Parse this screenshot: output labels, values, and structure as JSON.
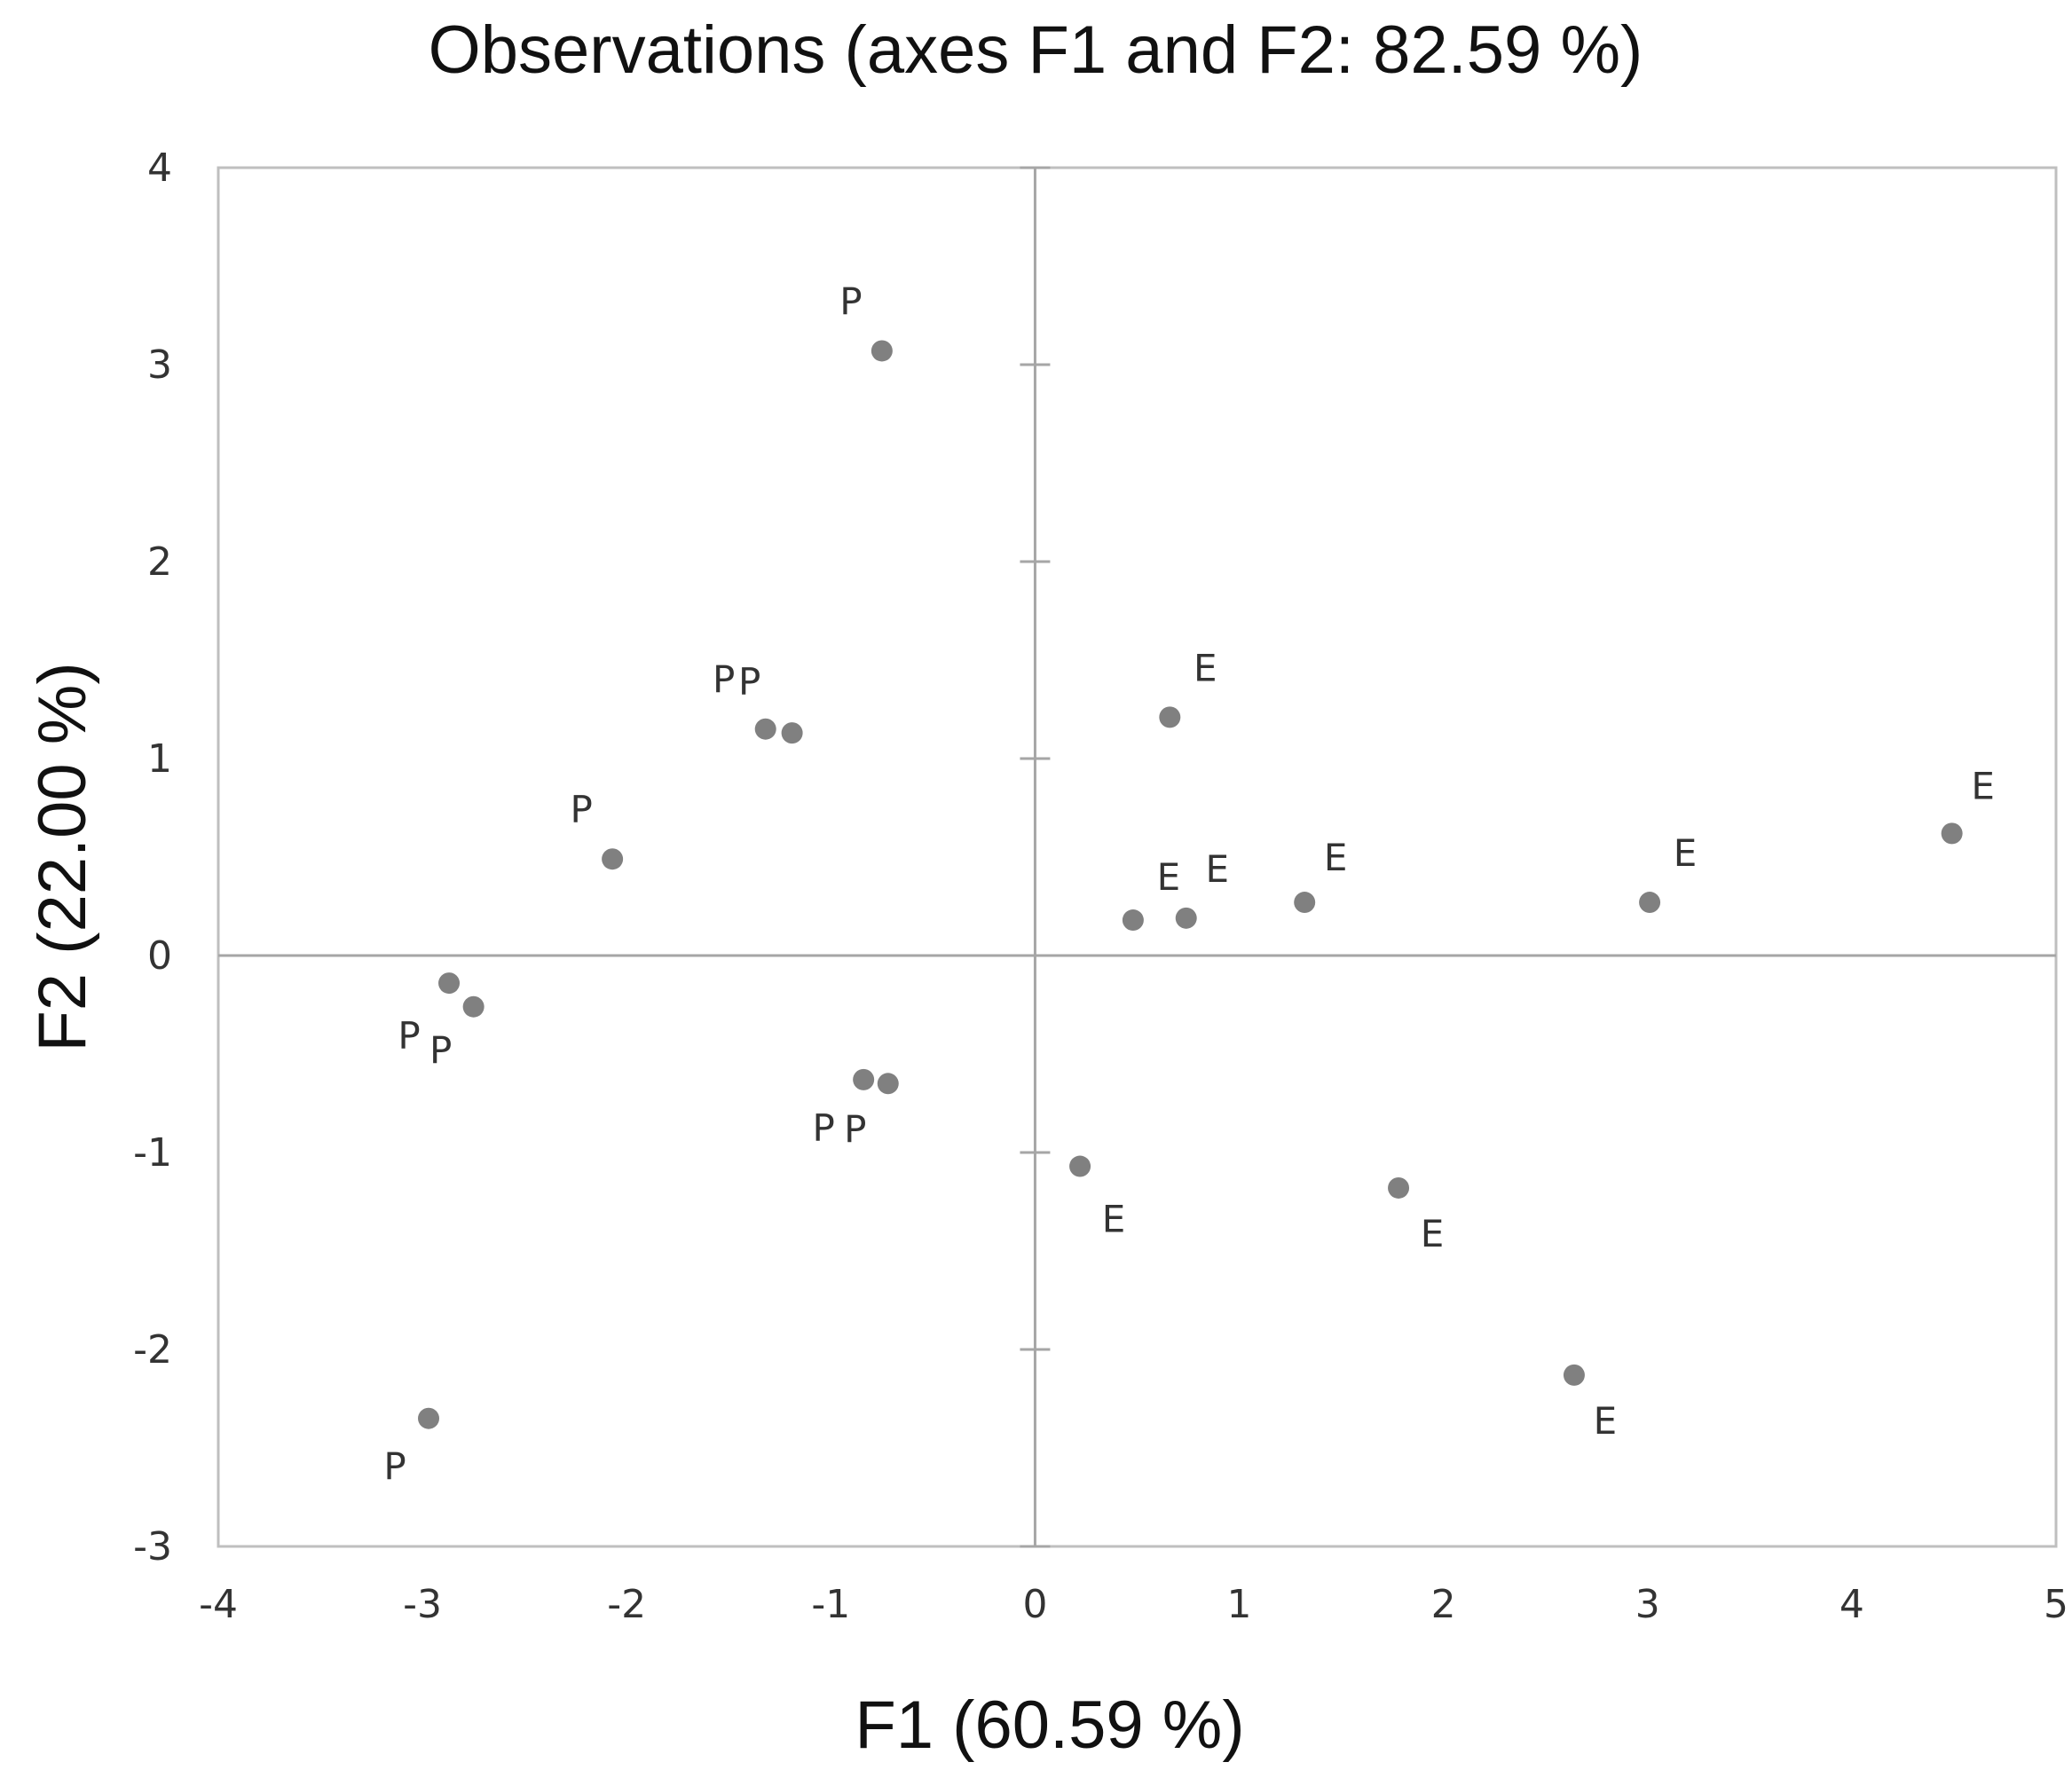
{
  "chart_data": {
    "type": "scatter",
    "title": "Observations (axes F1 and F2: 82.59 %)",
    "xlabel": "F1 (60.59 %)",
    "ylabel": "F2 (22.00 %)",
    "xlim": [
      -4,
      5
    ],
    "ylim": [
      -3,
      4
    ],
    "xticks": [
      "-4",
      "-3",
      "-2",
      "-1",
      "0",
      "1",
      "2",
      "3",
      "4",
      "5"
    ],
    "yticks": [
      "4",
      "3",
      "2",
      "1",
      "0",
      "-1",
      "-2",
      "-3"
    ],
    "grid": false,
    "colors": {
      "point": "#808080",
      "frame": "#bfbfbf",
      "axis": "#a6a6a6",
      "text": "#333333"
    },
    "points": [
      {
        "x": -0.75,
        "y": 3.07,
        "label": "P"
      },
      {
        "x": -1.32,
        "y": 1.15,
        "label": "P"
      },
      {
        "x": -1.19,
        "y": 1.13,
        "label": "P"
      },
      {
        "x": -2.07,
        "y": 0.49,
        "label": "P"
      },
      {
        "x": -2.87,
        "y": -0.14,
        "label": "P"
      },
      {
        "x": -2.75,
        "y": -0.26,
        "label": "P"
      },
      {
        "x": -0.84,
        "y": -0.63,
        "label": "P"
      },
      {
        "x": -0.72,
        "y": -0.65,
        "label": "P"
      },
      {
        "x": -2.97,
        "y": -2.35,
        "label": "P"
      },
      {
        "x": 0.66,
        "y": 1.21,
        "label": "E"
      },
      {
        "x": 4.49,
        "y": 0.62,
        "label": "E"
      },
      {
        "x": 0.48,
        "y": 0.18,
        "label": "E"
      },
      {
        "x": 0.74,
        "y": 0.19,
        "label": "E"
      },
      {
        "x": 1.32,
        "y": 0.27,
        "label": "E"
      },
      {
        "x": 3.01,
        "y": 0.27,
        "label": "E"
      },
      {
        "x": 0.22,
        "y": -1.07,
        "label": "E"
      },
      {
        "x": 1.78,
        "y": -1.18,
        "label": "E"
      },
      {
        "x": 2.64,
        "y": -2.13,
        "label": "E"
      }
    ]
  }
}
